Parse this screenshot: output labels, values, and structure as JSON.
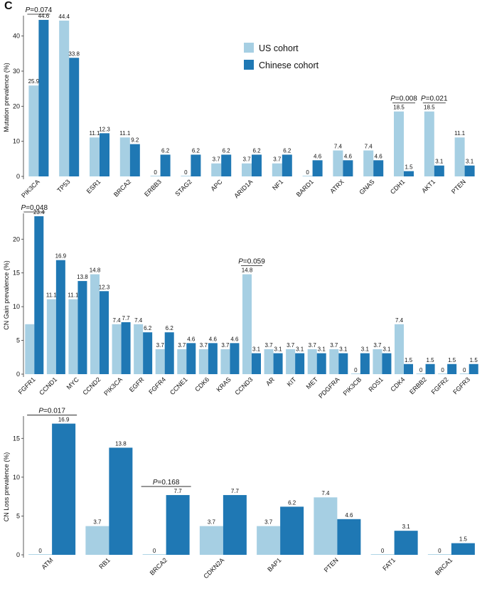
{
  "panel_label": "C",
  "colors": {
    "us": "#a6cfe3",
    "cn": "#1f78b4",
    "axis": "#333333"
  },
  "legend": {
    "us": "US cohort",
    "cn": "Chinese cohort"
  },
  "chart_data": [
    {
      "type": "bar",
      "ylabel": "Mutation prevalence (%)",
      "ylim": [
        0,
        45
      ],
      "yticks": [
        0,
        10,
        20,
        30,
        40
      ],
      "categories": [
        "PIK3CA",
        "TP53",
        "ESR1",
        "BRCA2",
        "ERBB3",
        "STAG2",
        "APC",
        "ARID1A",
        "NF1",
        "BARD1",
        "ATRX",
        "GNAS",
        "CDH1",
        "AKT1",
        "PTEN"
      ],
      "series": [
        {
          "name": "US cohort",
          "values": [
            25.9,
            44.4,
            11.1,
            11.1,
            0,
            0,
            3.7,
            3.7,
            3.7,
            0,
            7.4,
            7.4,
            18.5,
            18.5,
            11.1
          ]
        },
        {
          "name": "Chinese cohort",
          "values": [
            44.6,
            33.8,
            12.3,
            9.2,
            6.2,
            6.2,
            6.2,
            6.2,
            6.2,
            4.6,
            4.6,
            4.6,
            1.5,
            3.1,
            3.1
          ]
        }
      ],
      "annotations": [
        {
          "category": "PIK3CA",
          "prefix": "P",
          "text": "=0.074"
        },
        {
          "category": "CDH1",
          "prefix": "P",
          "text": "=0.008"
        },
        {
          "category": "AKT1",
          "prefix": "P",
          "text": "=0.021"
        }
      ]
    },
    {
      "type": "bar",
      "ylabel": "CN Gain prevalence (%)",
      "ylim": [
        0,
        23.4
      ],
      "yticks": [
        0,
        5,
        10,
        15,
        20
      ],
      "categories": [
        "FGFR1",
        "CCND1",
        "MYC",
        "CCND2",
        "PIK3CA",
        "EGFR",
        "FGFR4",
        "CCNE1",
        "CDK6",
        "KRAS",
        "CCND3",
        "AR",
        "KIT",
        "MET",
        "PDGFRA",
        "PIK3CB",
        "ROS1",
        "CDK4",
        "ERBB2",
        "FGFR2",
        "FGFR3"
      ],
      "series": [
        {
          "name": "US cohort",
          "values": [
            7.4,
            11.1,
            11.1,
            14.8,
            7.4,
            7.4,
            3.7,
            3.7,
            3.7,
            3.7,
            14.8,
            3.7,
            3.7,
            3.7,
            3.7,
            0,
            3.7,
            7.4,
            0,
            0,
            0
          ]
        },
        {
          "name": "Chinese cohort",
          "values": [
            23.4,
            16.9,
            13.8,
            12.3,
            7.7,
            6.2,
            6.2,
            4.6,
            4.6,
            4.6,
            3.1,
            3.1,
            3.1,
            3.1,
            3.1,
            3.1,
            3.1,
            1.5,
            1.5,
            1.5,
            1.5
          ]
        }
      ],
      "hidden_labels": [
        [
          0,
          0
        ]
      ],
      "annotations": [
        {
          "category": "FGFR1",
          "prefix": "P",
          "text": "=0.048"
        },
        {
          "category": "CCND3",
          "prefix": "P",
          "text": "=0.059"
        }
      ]
    },
    {
      "type": "bar",
      "ylabel": "CN Loss prevalence (%)",
      "ylim": [
        0,
        17.5
      ],
      "yticks": [
        0,
        5,
        10,
        15
      ],
      "categories": [
        "ATM",
        "RB1",
        "BRCA2",
        "CDKN2A",
        "BAP1",
        "PTEN",
        "FAT1",
        "BRCA1"
      ],
      "series": [
        {
          "name": "US cohort",
          "values": [
            0,
            3.7,
            0,
            3.7,
            3.7,
            7.4,
            0,
            0
          ]
        },
        {
          "name": "Chinese cohort",
          "values": [
            16.9,
            13.8,
            7.7,
            7.7,
            6.2,
            4.6,
            3.1,
            1.5
          ]
        }
      ],
      "annotations": [
        {
          "category": "ATM",
          "prefix": "P",
          "text": "=0.017"
        },
        {
          "category": "BRCA2",
          "prefix": "P",
          "text": "=0.168"
        }
      ]
    }
  ]
}
